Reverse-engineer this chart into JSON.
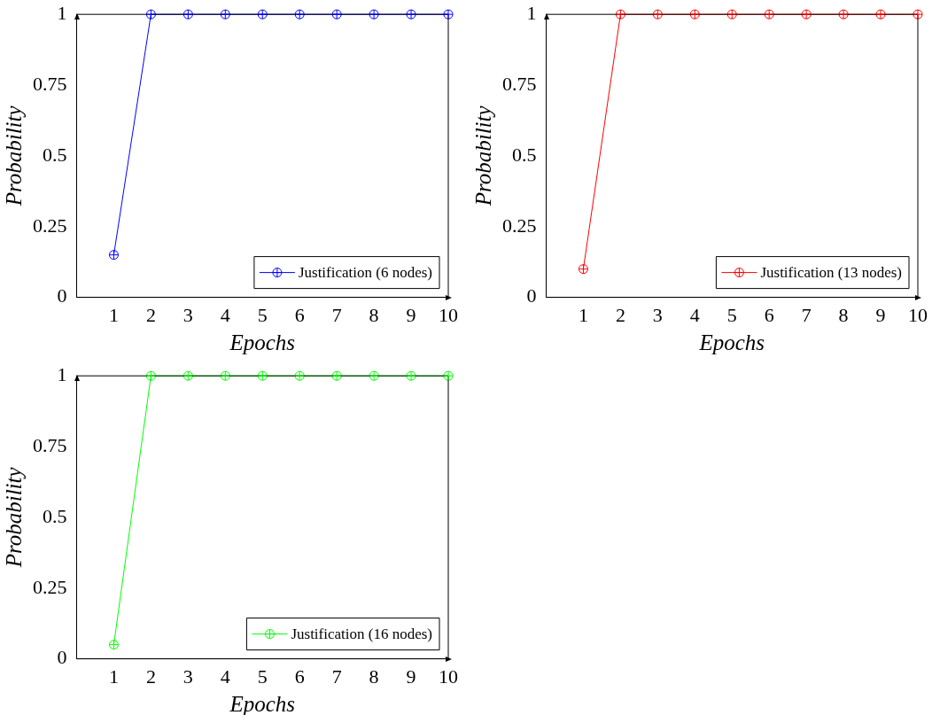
{
  "chart_data": [
    {
      "type": "line",
      "xlabel": "Epochs",
      "ylabel": "Probability",
      "x": [
        1,
        2,
        3,
        4,
        5,
        6,
        7,
        8,
        9,
        10
      ],
      "xlim": [
        0,
        10
      ],
      "xticks": [
        1,
        2,
        3,
        4,
        5,
        6,
        7,
        8,
        9,
        10
      ],
      "ylim": [
        0,
        1
      ],
      "yticks": [
        0,
        0.25,
        0.5,
        0.75,
        1
      ],
      "legend": "bottom right",
      "marker": "circle",
      "series": [
        {
          "name": "Justification (6 nodes)",
          "color": "#0000ff",
          "values": [
            0.15,
            1,
            1,
            1,
            1,
            1,
            1,
            1,
            1,
            1
          ]
        }
      ]
    },
    {
      "type": "line",
      "xlabel": "Epochs",
      "ylabel": "Probability",
      "x": [
        1,
        2,
        3,
        4,
        5,
        6,
        7,
        8,
        9,
        10
      ],
      "xlim": [
        0,
        10
      ],
      "xticks": [
        1,
        2,
        3,
        4,
        5,
        6,
        7,
        8,
        9,
        10
      ],
      "ylim": [
        0,
        1
      ],
      "yticks": [
        0,
        0.25,
        0.5,
        0.75,
        1
      ],
      "legend": "bottom right",
      "marker": "circle",
      "series": [
        {
          "name": "Justification (13 nodes)",
          "color": "#ff0000",
          "values": [
            0.1,
            1,
            1,
            1,
            1,
            1,
            1,
            1,
            1,
            1
          ]
        }
      ]
    },
    {
      "type": "line",
      "xlabel": "Epochs",
      "ylabel": "Probability",
      "x": [
        1,
        2,
        3,
        4,
        5,
        6,
        7,
        8,
        9,
        10
      ],
      "xlim": [
        0,
        10
      ],
      "xticks": [
        1,
        2,
        3,
        4,
        5,
        6,
        7,
        8,
        9,
        10
      ],
      "ylim": [
        0,
        1
      ],
      "yticks": [
        0,
        0.25,
        0.5,
        0.75,
        1
      ],
      "legend": "bottom right",
      "marker": "circle",
      "series": [
        {
          "name": "Justification (16 nodes)",
          "color": "#00ff00",
          "values": [
            0.05,
            1,
            1,
            1,
            1,
            1,
            1,
            1,
            1,
            1
          ]
        }
      ]
    }
  ]
}
